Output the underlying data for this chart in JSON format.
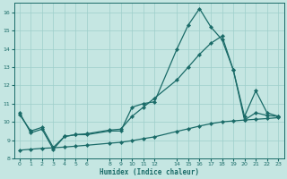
{
  "xlabel": "Humidex (Indice chaleur)",
  "bg_color": "#c5e6e2",
  "grid_color": "#9ecfcb",
  "line_color": "#1a6b68",
  "ylim": [
    8,
    16.5
  ],
  "xlim": [
    -0.5,
    23.5
  ],
  "yticks": [
    8,
    9,
    10,
    11,
    12,
    13,
    14,
    15,
    16
  ],
  "xticks": [
    0,
    1,
    2,
    3,
    4,
    5,
    6,
    8,
    9,
    10,
    11,
    12,
    14,
    15,
    16,
    17,
    18,
    19,
    20,
    21,
    22,
    23
  ],
  "series1_x": [
    0,
    1,
    2,
    3,
    4,
    5,
    6,
    8,
    9,
    10,
    11,
    12,
    14,
    15,
    16,
    17,
    18,
    19,
    20,
    21,
    22,
    23
  ],
  "series1_y": [
    10.5,
    9.4,
    9.6,
    8.5,
    9.2,
    9.3,
    9.3,
    9.5,
    9.5,
    10.8,
    11.0,
    11.1,
    14.0,
    15.3,
    16.2,
    15.2,
    14.5,
    12.85,
    10.3,
    11.7,
    10.5,
    10.3
  ],
  "series2_x": [
    0,
    1,
    2,
    3,
    4,
    5,
    6,
    8,
    9,
    10,
    11,
    12,
    14,
    15,
    16,
    17,
    18,
    19,
    20,
    21,
    22,
    23
  ],
  "series2_y": [
    10.4,
    9.5,
    9.7,
    8.6,
    9.2,
    9.3,
    9.35,
    9.55,
    9.6,
    10.3,
    10.8,
    11.3,
    12.3,
    13.0,
    13.7,
    14.3,
    14.7,
    12.85,
    10.1,
    10.5,
    10.35,
    10.3
  ],
  "series3_x": [
    0,
    1,
    2,
    3,
    4,
    5,
    6,
    8,
    9,
    10,
    11,
    12,
    14,
    15,
    16,
    17,
    18,
    19,
    20,
    21,
    22,
    23
  ],
  "series3_y": [
    8.45,
    8.5,
    8.55,
    8.58,
    8.62,
    8.67,
    8.72,
    8.83,
    8.88,
    8.97,
    9.08,
    9.18,
    9.48,
    9.62,
    9.77,
    9.9,
    10.0,
    10.05,
    10.1,
    10.14,
    10.18,
    10.23
  ]
}
